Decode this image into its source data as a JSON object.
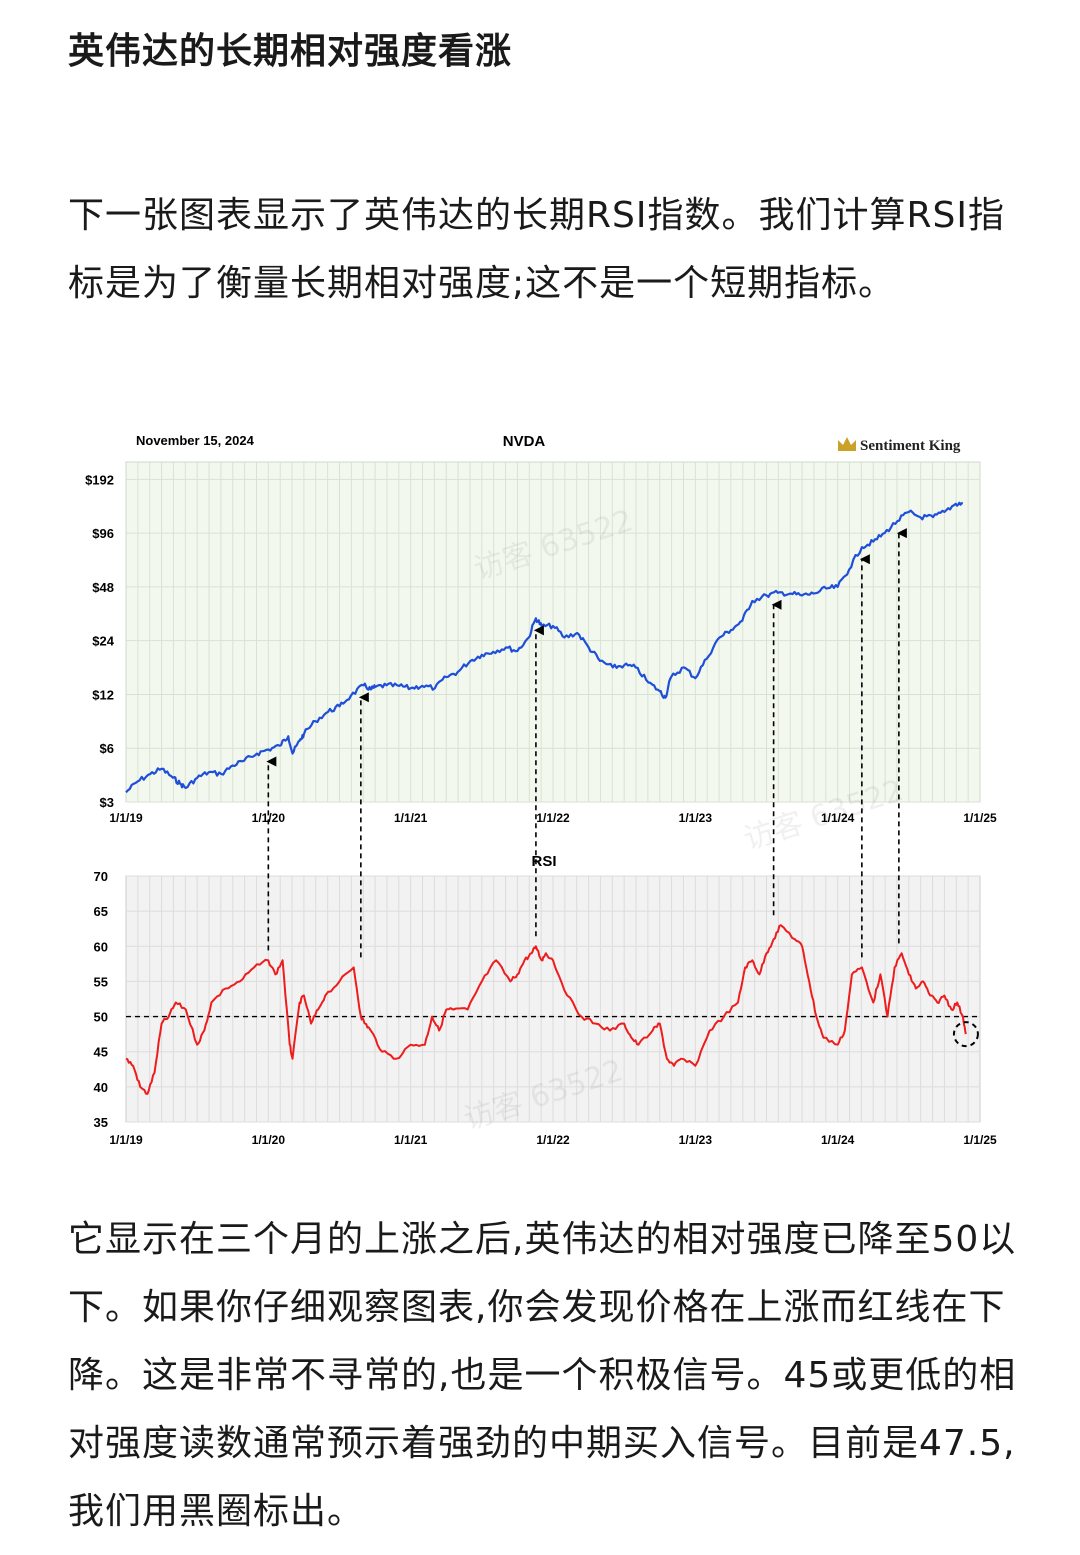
{
  "article": {
    "title": "英伟达的长期相对强度看涨",
    "paragraph1": "下一张图表显示了英伟达的长期RSI指数。我们计算RSI指标是为了衡量长期相对强度;这不是一个短期指标。",
    "paragraph2": "它显示在三个月的上涨之后,英伟达的相对强度已降至50以下。如果你仔细观察图表,你会发现价格在上涨而红线在下降。这是非常不寻常的,也是一个积极信号。45或更低的相对强度读数通常预示着强劲的中期买入信号。目前是47.5,我们用黑圈标出。"
  },
  "watermark": "访客 63522",
  "chart_data": [
    {
      "type": "line",
      "date_label": "November 15, 2024",
      "title": "NVDA",
      "brand": "Sentiment King",
      "yscale": "log2",
      "ylim": [
        3,
        240
      ],
      "yticks": [
        3,
        6,
        12,
        24,
        48,
        96,
        192
      ],
      "ytick_labels": [
        "$3",
        "$6",
        "$12",
        "$24",
        "$48",
        "$96",
        "$192"
      ],
      "xlim": [
        2019.0,
        2025.0
      ],
      "xticks": [
        2019,
        2020,
        2021,
        2022,
        2023,
        2024,
        2025
      ],
      "xtick_labels": [
        "1/1/19",
        "1/1/20",
        "1/1/21",
        "1/1/22",
        "1/1/23",
        "1/1/24",
        "1/1/25"
      ],
      "series": [
        {
          "name": "NVDA price",
          "color": "#1f4fd8",
          "x": [
            2019.0,
            2019.08,
            2019.17,
            2019.25,
            2019.33,
            2019.38,
            2019.42,
            2019.5,
            2019.58,
            2019.67,
            2019.75,
            2019.83,
            2019.92,
            2020.0,
            2020.08,
            2020.14,
            2020.17,
            2020.22,
            2020.25,
            2020.33,
            2020.42,
            2020.5,
            2020.58,
            2020.67,
            2020.72,
            2020.75,
            2020.83,
            2020.92,
            2021.0,
            2021.08,
            2021.17,
            2021.25,
            2021.33,
            2021.42,
            2021.5,
            2021.58,
            2021.67,
            2021.75,
            2021.83,
            2021.88,
            2021.92,
            2022.0,
            2022.08,
            2022.17,
            2022.25,
            2022.33,
            2022.42,
            2022.5,
            2022.58,
            2022.67,
            2022.75,
            2022.79,
            2022.83,
            2022.92,
            2023.0,
            2023.08,
            2023.17,
            2023.25,
            2023.33,
            2023.4,
            2023.5,
            2023.58,
            2023.67,
            2023.75,
            2023.83,
            2023.92,
            2024.0,
            2024.08,
            2024.17,
            2024.25,
            2024.33,
            2024.42,
            2024.5,
            2024.58,
            2024.67,
            2024.75,
            2024.83,
            2024.88
          ],
          "y": [
            3.4,
            3.9,
            4.3,
            4.6,
            4.1,
            3.8,
            3.6,
            4.1,
            4.4,
            4.3,
            4.8,
            5.1,
            5.6,
            5.9,
            6.2,
            7.0,
            5.6,
            6.6,
            7.2,
            8.5,
            9.6,
            10.3,
            11.8,
            13.5,
            12.8,
            13.2,
            13.5,
            13.4,
            13.0,
            13.4,
            13.0,
            15.0,
            16.0,
            18.5,
            20.0,
            20.8,
            22.0,
            21.0,
            25.0,
            32.0,
            29.0,
            29.0,
            25.0,
            26.5,
            22.0,
            18.5,
            17.0,
            17.5,
            17.0,
            14.0,
            12.5,
            11.5,
            15.0,
            17.0,
            14.8,
            19.0,
            25.0,
            27.5,
            31.0,
            40.0,
            43.0,
            44.5,
            44.0,
            43.0,
            44.0,
            47.0,
            48.0,
            60.0,
            80.0,
            86.0,
            96.0,
            112.0,
            126.0,
            118.0,
            118.0,
            126.0,
            140.0,
            141.0
          ]
        }
      ]
    },
    {
      "type": "line",
      "title": "RSI",
      "ylim": [
        35,
        70
      ],
      "yticks": [
        35,
        40,
        45,
        50,
        55,
        60,
        65,
        70
      ],
      "xlim": [
        2019.0,
        2025.0
      ],
      "xticks": [
        2019,
        2020,
        2021,
        2022,
        2023,
        2024,
        2025
      ],
      "xtick_labels": [
        "1/1/19",
        "1/1/20",
        "1/1/21",
        "1/1/22",
        "1/1/23",
        "1/1/24",
        "1/1/25"
      ],
      "reference_line": 50,
      "current_marker": {
        "x": 2024.88,
        "y": 47.5
      },
      "series": [
        {
          "name": "RSI",
          "color": "#ee1c1c",
          "x": [
            2019.0,
            2019.05,
            2019.1,
            2019.15,
            2019.2,
            2019.25,
            2019.3,
            2019.35,
            2019.42,
            2019.5,
            2019.55,
            2019.6,
            2019.7,
            2019.8,
            2019.9,
            2020.0,
            2020.05,
            2020.1,
            2020.15,
            2020.17,
            2020.22,
            2020.25,
            2020.3,
            2020.35,
            2020.4,
            2020.5,
            2020.6,
            2020.65,
            2020.68,
            2020.72,
            2020.8,
            2020.9,
            2021.0,
            2021.1,
            2021.15,
            2021.2,
            2021.25,
            2021.3,
            2021.4,
            2021.5,
            2021.6,
            2021.7,
            2021.75,
            2021.8,
            2021.85,
            2021.88,
            2021.92,
            2021.95,
            2022.0,
            2022.1,
            2022.2,
            2022.3,
            2022.4,
            2022.5,
            2022.55,
            2022.6,
            2022.7,
            2022.75,
            2022.8,
            2022.85,
            2022.9,
            2023.0,
            2023.1,
            2023.2,
            2023.3,
            2023.35,
            2023.4,
            2023.45,
            2023.5,
            2023.55,
            2023.6,
            2023.7,
            2023.75,
            2023.8,
            2023.85,
            2023.9,
            2024.0,
            2024.05,
            2024.1,
            2024.17,
            2024.25,
            2024.3,
            2024.35,
            2024.4,
            2024.45,
            2024.5,
            2024.55,
            2024.6,
            2024.65,
            2024.7,
            2024.75,
            2024.8,
            2024.84,
            2024.88,
            2024.9
          ],
          "y": [
            44,
            43,
            40,
            39,
            42,
            49,
            50,
            52,
            51,
            46,
            48,
            52,
            54,
            55,
            57,
            58,
            56,
            58,
            46,
            44,
            52,
            53,
            49,
            51,
            53,
            55,
            57,
            50,
            49,
            48,
            45,
            44,
            46,
            46,
            50,
            48,
            51,
            51,
            51,
            55,
            58,
            55,
            56,
            58,
            59,
            60,
            58,
            59,
            58,
            53,
            50,
            49,
            48,
            49,
            47,
            46,
            48,
            49,
            44,
            43,
            44,
            43,
            48,
            50,
            52,
            57,
            58,
            56,
            59,
            61,
            63,
            61,
            60,
            55,
            50,
            47,
            46,
            48,
            56,
            57,
            52,
            56,
            50,
            57,
            59,
            56,
            54,
            55,
            53,
            52,
            53,
            51,
            52,
            50,
            47.5
          ]
        }
      ]
    }
  ]
}
